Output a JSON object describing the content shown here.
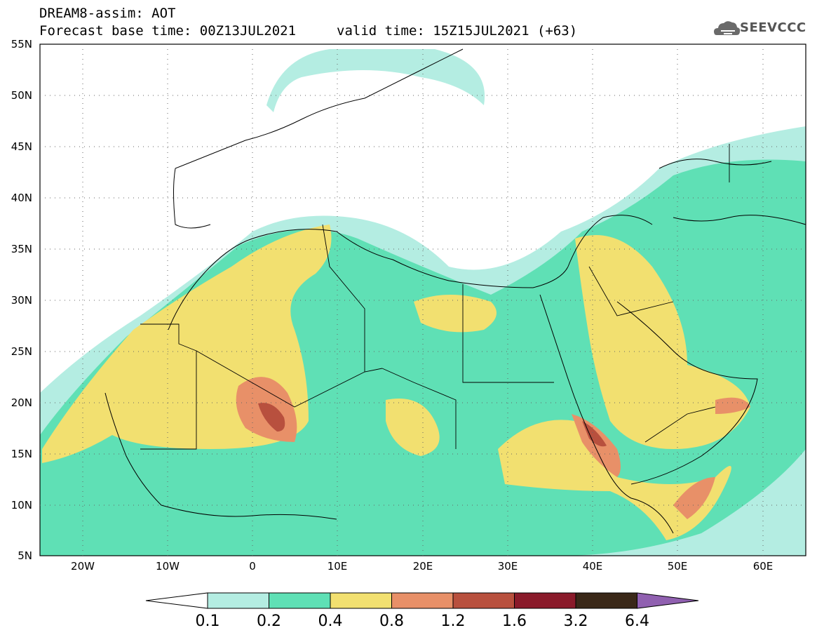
{
  "header": {
    "title_line1": "DREAM8-assim: AOT",
    "title_line2": "Forecast base time: 00Z13JUL2021",
    "valid_time": "valid time: 15Z15JUL2021 (+63)",
    "logo_text": "SEEVCCC"
  },
  "map": {
    "lon_range": [
      -25,
      65
    ],
    "lat_range": [
      5,
      55
    ],
    "lat_labels": [
      "55N",
      "50N",
      "45N",
      "40N",
      "35N",
      "30N",
      "25N",
      "20N",
      "15N",
      "10N",
      "5N"
    ],
    "lon_labels": [
      "20W",
      "10W",
      "0",
      "10E",
      "20E",
      "30E",
      "40E",
      "50E",
      "60E"
    ],
    "colors": {
      "lvl_0_1": "#b4ede2",
      "lvl_0_2": "#5fe0b5",
      "lvl_0_4": "#f2e070",
      "lvl_0_8": "#e89068",
      "lvl_1_2": "#b8503e",
      "lvl_1_6": "#8a1a2a",
      "lvl_3_2": "#3a2818",
      "lvl_6_4": "#9060b0"
    }
  },
  "colorbar": {
    "labels": [
      "0.1",
      "0.2",
      "0.4",
      "0.8",
      "1.2",
      "1.6",
      "3.2",
      "6.4"
    ],
    "colors": [
      "#b4ede2",
      "#5fe0b5",
      "#f2e070",
      "#e89068",
      "#b8503e",
      "#8a1a2a",
      "#3a2818"
    ],
    "low_color": "#ffffff",
    "high_color": "#9060b0"
  }
}
